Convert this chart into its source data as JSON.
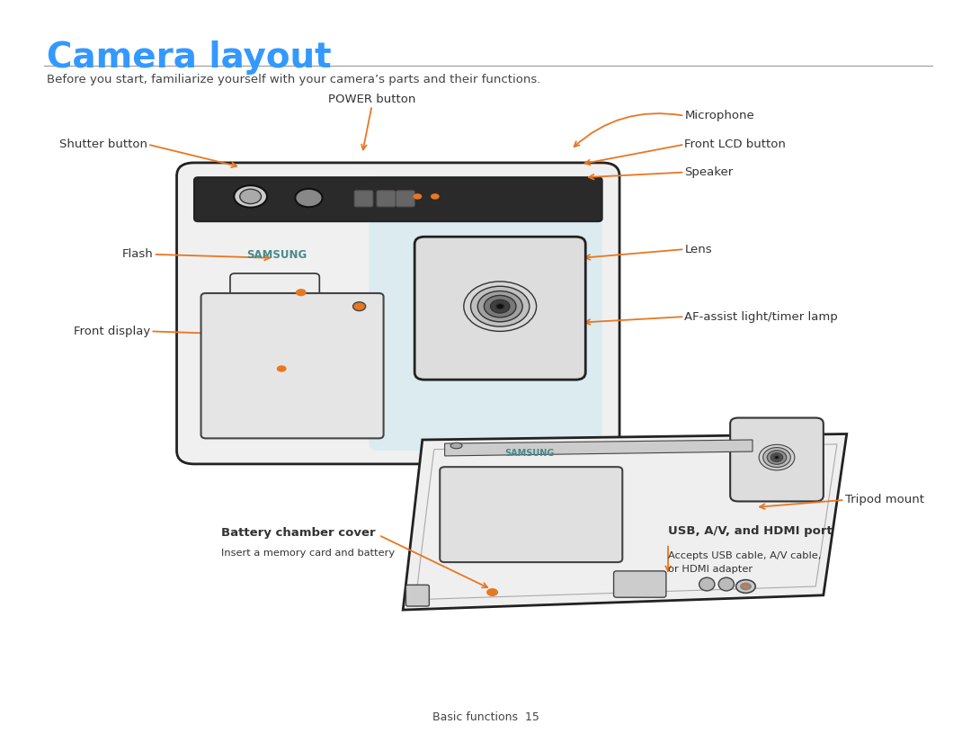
{
  "title": "Camera layout",
  "subtitle": "Before you start, familiarize yourself with your camera’s parts and their functions.",
  "title_color": "#3399FF",
  "subtitle_color": "#444444",
  "line_color": "#999999",
  "arrow_color": "#E87722",
  "label_color": "#333333",
  "background_color": "#FFFFFF",
  "footer_text": "Basic functions  15"
}
